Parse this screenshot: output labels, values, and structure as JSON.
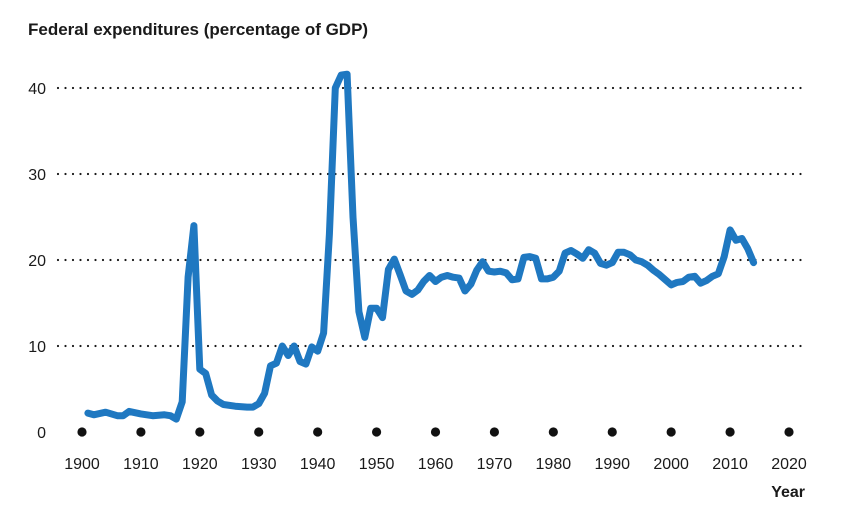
{
  "chart_data": {
    "type": "line",
    "title": "Federal expenditures (percentage of GDP)",
    "xlabel": "Year",
    "ylabel": "",
    "xlim": [
      1900,
      2020
    ],
    "ylim": [
      0,
      43
    ],
    "x_ticks": [
      1900,
      1910,
      1920,
      1930,
      1940,
      1950,
      1960,
      1970,
      1980,
      1990,
      2000,
      2010,
      2020
    ],
    "y_ticks": [
      0,
      10,
      20,
      30,
      40
    ],
    "grid": "horizontal dotted",
    "line_color": "#1f78c1",
    "series": [
      {
        "x": [
          1901,
          1902,
          1904,
          1906,
          1907,
          1908,
          1910,
          1912,
          1914,
          1915,
          1916,
          1917,
          1918,
          1919,
          1920,
          1921,
          1922,
          1923,
          1924,
          1926,
          1928,
          1929,
          1930,
          1931,
          1932,
          1933,
          1934,
          1935,
          1936,
          1937,
          1938,
          1939,
          1940,
          1941,
          1942,
          1943,
          1944,
          1945,
          1946,
          1947,
          1948,
          1949,
          1950,
          1951,
          1952,
          1953,
          1954,
          1955,
          1956,
          1957,
          1958,
          1959,
          1960,
          1961,
          1962,
          1963,
          1964,
          1965,
          1966,
          1967,
          1968,
          1969,
          1970,
          1971,
          1972,
          1973,
          1974,
          1975,
          1976,
          1977,
          1978,
          1979,
          1980,
          1981,
          1982,
          1983,
          1984,
          1985,
          1986,
          1987,
          1988,
          1989,
          1990,
          1991,
          1992,
          1993,
          1994,
          1995,
          1996,
          1997,
          1998,
          1999,
          2000,
          2001,
          2002,
          2003,
          2004,
          2005,
          2006,
          2007,
          2008,
          2009,
          2010,
          2011,
          2012,
          2013,
          2014
        ],
        "y": [
          2.2,
          2.0,
          2.3,
          1.9,
          1.9,
          2.4,
          2.1,
          1.9,
          2.0,
          1.9,
          1.5,
          3.5,
          18.0,
          24.0,
          7.3,
          6.8,
          4.3,
          3.6,
          3.2,
          3.0,
          2.9,
          2.9,
          3.3,
          4.5,
          7.7,
          8.0,
          10.0,
          8.9,
          10.0,
          8.2,
          7.9,
          9.9,
          9.4,
          11.5,
          23.0,
          40.0,
          41.5,
          41.6,
          25.0,
          14.0,
          11.0,
          14.4,
          14.4,
          13.3,
          18.9,
          20.1,
          18.3,
          16.4,
          16.0,
          16.5,
          17.5,
          18.2,
          17.5,
          18.0,
          18.2,
          18.0,
          17.9,
          16.4,
          17.2,
          18.8,
          19.8,
          18.7,
          18.6,
          18.7,
          18.5,
          17.7,
          17.8,
          20.3,
          20.4,
          20.2,
          17.8,
          17.8,
          18.0,
          18.7,
          20.8,
          21.1,
          20.7,
          20.2,
          21.2,
          20.8,
          19.6,
          19.4,
          19.7,
          20.9,
          20.9,
          20.6,
          20.0,
          19.8,
          19.4,
          18.8,
          18.3,
          17.7,
          17.1,
          17.4,
          17.5,
          18.0,
          18.1,
          17.3,
          17.6,
          18.1,
          18.4,
          20.4,
          23.5,
          22.3,
          22.5,
          21.3,
          19.7
        ]
      }
    ]
  }
}
